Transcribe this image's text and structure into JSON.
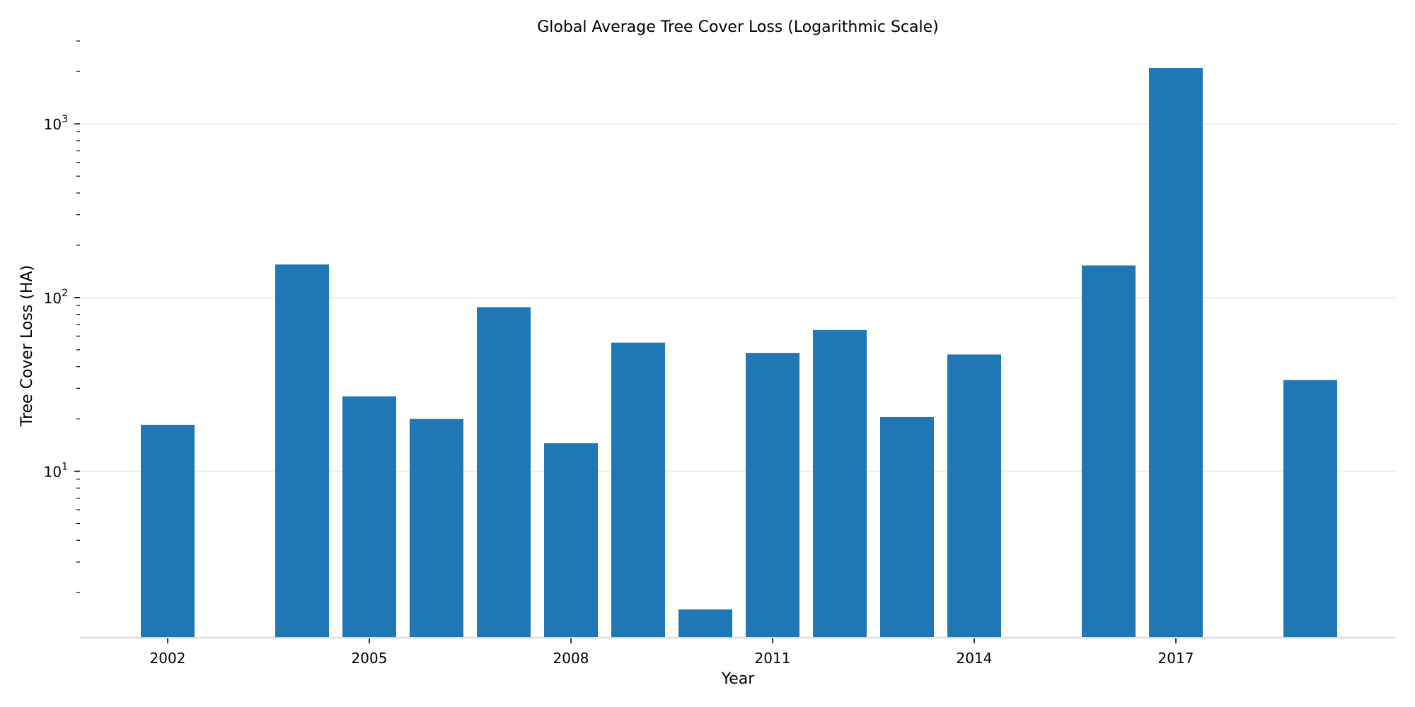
{
  "chart_data": {
    "type": "bar",
    "title": "Global Average Tree Cover Loss (Logarithmic Scale)",
    "xlabel": "Year",
    "ylabel": "Tree Cover Loss (HA)",
    "yscale": "log",
    "ylim": [
      1.1,
      3000
    ],
    "grid": true,
    "bar_color": "#1f77b4",
    "grid_color": "#e6e6e6",
    "x_ticks": [
      2002,
      2005,
      2008,
      2011,
      2014,
      2017
    ],
    "y_ticks": [
      {
        "value": 10,
        "base": "10",
        "exp": "1"
      },
      {
        "value": 100,
        "base": "10",
        "exp": "2"
      },
      {
        "value": 1000,
        "base": "10",
        "exp": "3"
      }
    ],
    "x": [
      2002,
      2004,
      2005,
      2006,
      2007,
      2008,
      2009,
      2010,
      2011,
      2012,
      2013,
      2014,
      2016,
      2017,
      2019
    ],
    "values": [
      18.5,
      155,
      27,
      20,
      88,
      14.5,
      55,
      1.6,
      48,
      65,
      20.5,
      47,
      153,
      2100,
      33.5
    ]
  }
}
